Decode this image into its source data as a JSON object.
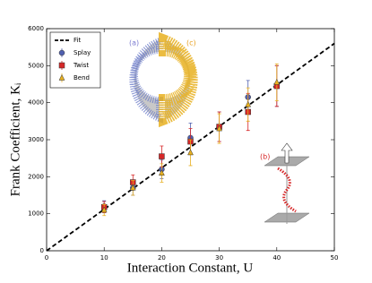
{
  "chart_data": {
    "type": "scatter",
    "xlabel": "Interaction Constant, U",
    "ylabel": "Frank Coefficient, Kᵢ",
    "x": [
      10,
      15,
      20,
      25,
      30,
      35,
      40
    ],
    "series": [
      {
        "name": "Splay",
        "color": "#5060b0",
        "marker": "circle",
        "values": [
          1200,
          1700,
          2200,
          3050,
          3350,
          4150,
          4450
        ],
        "errors": [
          150,
          200,
          250,
          400,
          400,
          450,
          550
        ]
      },
      {
        "name": "Twist",
        "color": "#d62728",
        "marker": "square",
        "values": [
          1180,
          1850,
          2550,
          2950,
          3350,
          3750,
          4450
        ],
        "errors": [
          150,
          200,
          280,
          350,
          400,
          500,
          550
        ]
      },
      {
        "name": "Bend",
        "color": "#e8b020",
        "marker": "triangle",
        "values": [
          1100,
          1700,
          2100,
          2650,
          3300,
          3950,
          4550
        ],
        "errors": [
          150,
          200,
          250,
          350,
          400,
          450,
          500
        ]
      }
    ],
    "fit": {
      "name": "Fit",
      "color": "#000000",
      "x": [
        0,
        50
      ],
      "values": [
        0,
        5600
      ]
    },
    "annotations": [
      "(a)",
      "(c)",
      "(b)"
    ],
    "xlim": [
      0,
      50
    ],
    "ylim": [
      0,
      6000
    ],
    "xticks": [
      0,
      10,
      20,
      30,
      40,
      50
    ],
    "yticks": [
      0,
      1000,
      2000,
      3000,
      4000,
      5000,
      6000
    ],
    "legend": "upper left"
  }
}
